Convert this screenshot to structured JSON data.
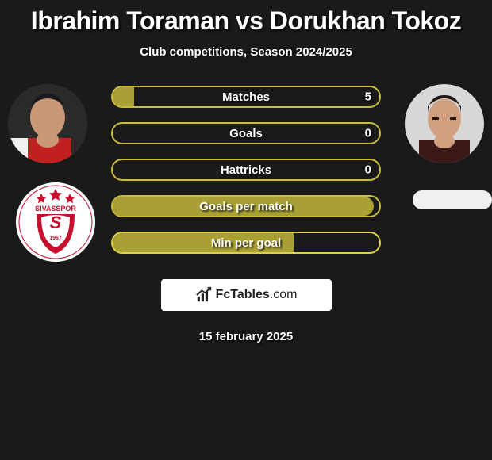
{
  "title": "Ibrahim Toraman vs Dorukhan Tokoz",
  "subtitle": "Club competitions, Season 2024/2025",
  "date": "15 february 2025",
  "branding_text_a": "FcTables",
  "branding_text_b": ".com",
  "colors": {
    "background": "#1a1a1a",
    "bar_fill": "#a8a034",
    "bar_border_primary": "#c8bc3a",
    "text": "#ffffff",
    "branding_bg": "#ffffff"
  },
  "bars": [
    {
      "label": "Matches",
      "right_value": "5",
      "fill_pct": 8,
      "border_color": "#c8bc3a"
    },
    {
      "label": "Goals",
      "right_value": "0",
      "fill_pct": 0,
      "border_color": "#c8bc3a"
    },
    {
      "label": "Hattricks",
      "right_value": "0",
      "fill_pct": 0,
      "border_color": "#c8bc3a"
    },
    {
      "label": "Goals per match",
      "right_value": "",
      "fill_pct": 98,
      "border_color": "#c8bc3a"
    },
    {
      "label": "Min per goal",
      "right_value": "",
      "fill_pct": 68,
      "border_color": "#dfd04a"
    }
  ],
  "players": {
    "left": {
      "name": "Ibrahim Toraman"
    },
    "right": {
      "name": "Dorukhan Tokoz"
    }
  },
  "clubs": {
    "left": {
      "name": "Sivasspor",
      "year": "1967"
    },
    "right": {
      "name": ""
    }
  }
}
